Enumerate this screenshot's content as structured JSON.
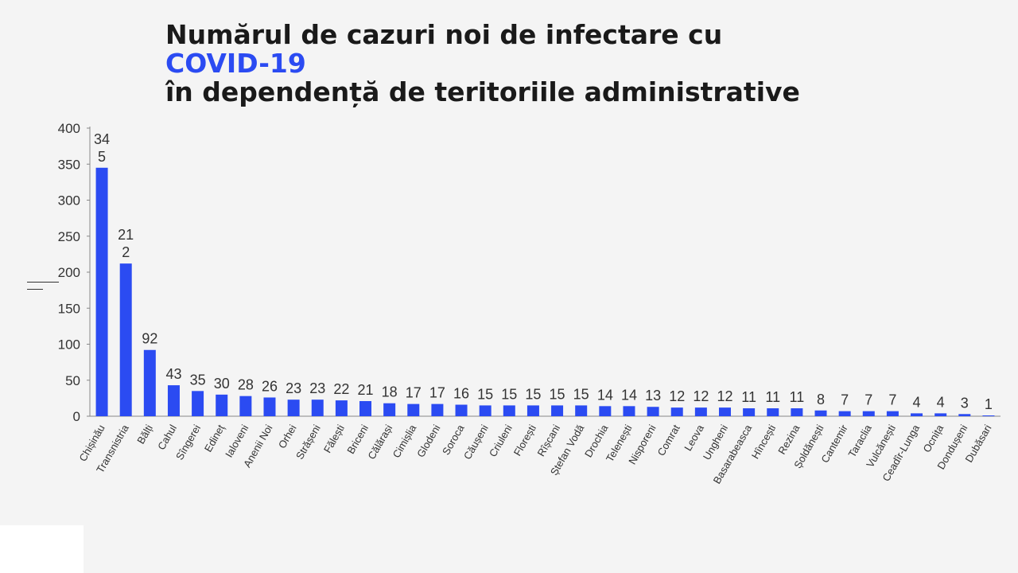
{
  "title": {
    "line1": "Numărul de cazuri noi de infectare cu",
    "line2": "COVID-19",
    "line3": "în dependență de teritoriile administrative"
  },
  "colors": {
    "bar": "#2b4bf2",
    "title": "#1a1a1a",
    "accent": "#2b4bf2"
  },
  "chart_data": {
    "type": "bar",
    "title": "Numărul de cazuri noi de infectare cu COVID-19 în dependență de teritoriile administrative",
    "xlabel": "",
    "ylabel": "",
    "ylim": [
      0,
      400
    ],
    "yticks": [
      0,
      50,
      100,
      150,
      200,
      250,
      300,
      350,
      400
    ],
    "grid": false,
    "categories": [
      "Chișinău",
      "Transnistria",
      "Bălți",
      "Cahul",
      "Sîngerei",
      "Edineț",
      "Ialoveni",
      "Anenii Noi",
      "Orhei",
      "Strășeni",
      "Fălești",
      "Briceni",
      "Călărași",
      "Cimișlia",
      "Glodeni",
      "Soroca",
      "Căușeni",
      "Criuleni",
      "Florești",
      "Rîșcani",
      "Ștefan Vodă",
      "Drochia",
      "Telenești",
      "Nisporeni",
      "Comrat",
      "Leova",
      "Ungheni",
      "Basarabeasca",
      "Hîncești",
      "Rezina",
      "Șoldănești",
      "Cantemir",
      "Taraclia",
      "Vulcănești",
      "Ceadîr-Lunga",
      "Ocnița",
      "Dondușeni",
      "Dubăsari"
    ],
    "values": [
      345,
      212,
      92,
      43,
      35,
      30,
      28,
      26,
      23,
      23,
      22,
      21,
      18,
      17,
      17,
      16,
      15,
      15,
      15,
      15,
      15,
      14,
      14,
      13,
      12,
      12,
      12,
      11,
      11,
      11,
      8,
      7,
      7,
      7,
      4,
      4,
      3,
      1
    ],
    "value_labels": [
      [
        "34",
        "5"
      ],
      [
        "21",
        "2"
      ]
    ]
  }
}
